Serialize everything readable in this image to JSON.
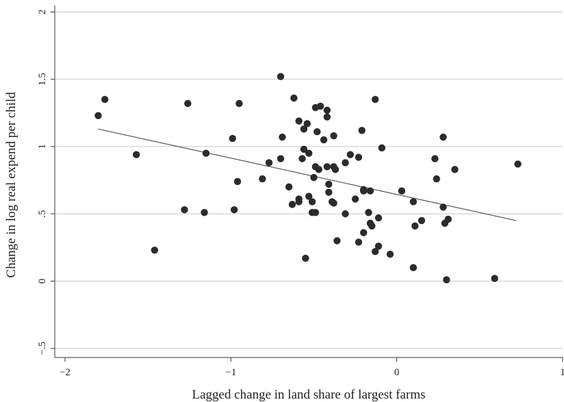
{
  "chart_data": {
    "type": "scatter",
    "title": "",
    "xlabel": "Lagged change in land share of largest farms",
    "ylabel": "Change in log real expend per child",
    "xlim": [
      -2.02,
      1.0
    ],
    "ylim": [
      -0.56,
      2.05
    ],
    "x_ticks": [
      {
        "value": -2,
        "label": "−2"
      },
      {
        "value": -1,
        "label": "−1"
      },
      {
        "value": 0,
        "label": "0"
      },
      {
        "value": 1,
        "label": "1"
      }
    ],
    "y_ticks": [
      {
        "value": -0.5,
        "label": "−.5"
      },
      {
        "value": 0,
        "label": "0"
      },
      {
        "value": 0.5,
        "label": ".5"
      },
      {
        "value": 1,
        "label": "1"
      },
      {
        "value": 1.5,
        "label": "1.5"
      },
      {
        "value": 2,
        "label": "2"
      }
    ],
    "grid": {
      "horizontal": true,
      "vertical": false
    },
    "legend": "none",
    "point_color": "#2b2b2b",
    "line_color": "#555555",
    "grid_color": "#c8c8c8",
    "fit_line": {
      "x": [
        -1.8,
        0.72
      ],
      "y": [
        1.13,
        0.45
      ]
    },
    "points": [
      {
        "x": -1.8,
        "y": 1.23
      },
      {
        "x": -1.76,
        "y": 1.35
      },
      {
        "x": -1.57,
        "y": 0.94
      },
      {
        "x": -1.46,
        "y": 0.23
      },
      {
        "x": -1.26,
        "y": 1.32
      },
      {
        "x": -1.28,
        "y": 0.53
      },
      {
        "x": -1.15,
        "y": 0.95
      },
      {
        "x": -1.16,
        "y": 0.51
      },
      {
        "x": -0.99,
        "y": 1.06
      },
      {
        "x": -0.95,
        "y": 1.32
      },
      {
        "x": -0.96,
        "y": 0.74
      },
      {
        "x": -0.98,
        "y": 0.53
      },
      {
        "x": -0.81,
        "y": 0.76
      },
      {
        "x": -0.77,
        "y": 0.88
      },
      {
        "x": -0.7,
        "y": 1.52
      },
      {
        "x": -0.69,
        "y": 1.07
      },
      {
        "x": -0.7,
        "y": 0.91
      },
      {
        "x": -0.65,
        "y": 0.7
      },
      {
        "x": -0.62,
        "y": 1.36
      },
      {
        "x": -0.63,
        "y": 0.57
      },
      {
        "x": -0.59,
        "y": 1.19
      },
      {
        "x": -0.59,
        "y": 0.61
      },
      {
        "x": -0.59,
        "y": 0.59
      },
      {
        "x": -0.56,
        "y": 1.13
      },
      {
        "x": -0.56,
        "y": 0.98
      },
      {
        "x": -0.57,
        "y": 0.91
      },
      {
        "x": -0.54,
        "y": 1.17
      },
      {
        "x": -0.55,
        "y": 0.17
      },
      {
        "x": -0.53,
        "y": 0.95
      },
      {
        "x": -0.53,
        "y": 0.63
      },
      {
        "x": -0.51,
        "y": 0.59
      },
      {
        "x": -0.51,
        "y": 0.51
      },
      {
        "x": -0.49,
        "y": 1.29
      },
      {
        "x": -0.48,
        "y": 1.11
      },
      {
        "x": -0.49,
        "y": 0.85
      },
      {
        "x": -0.5,
        "y": 0.77
      },
      {
        "x": -0.49,
        "y": 0.51
      },
      {
        "x": -0.46,
        "y": 1.3
      },
      {
        "x": -0.44,
        "y": 1.05
      },
      {
        "x": -0.47,
        "y": 0.83
      },
      {
        "x": -0.42,
        "y": 1.27
      },
      {
        "x": -0.42,
        "y": 1.22
      },
      {
        "x": -0.42,
        "y": 0.85
      },
      {
        "x": -0.41,
        "y": 0.72
      },
      {
        "x": -0.41,
        "y": 0.66
      },
      {
        "x": -0.39,
        "y": 0.59
      },
      {
        "x": -0.38,
        "y": 1.08
      },
      {
        "x": -0.38,
        "y": 0.85
      },
      {
        "x": -0.37,
        "y": 0.83
      },
      {
        "x": -0.38,
        "y": 0.58
      },
      {
        "x": -0.36,
        "y": 0.3
      },
      {
        "x": -0.31,
        "y": 0.88
      },
      {
        "x": -0.31,
        "y": 0.5
      },
      {
        "x": -0.28,
        "y": 0.94
      },
      {
        "x": -0.25,
        "y": 0.61
      },
      {
        "x": -0.23,
        "y": 0.92
      },
      {
        "x": -0.23,
        "y": 0.29
      },
      {
        "x": -0.21,
        "y": 1.12
      },
      {
        "x": -0.2,
        "y": 0.68
      },
      {
        "x": -0.2,
        "y": 0.67
      },
      {
        "x": -0.2,
        "y": 0.36
      },
      {
        "x": -0.17,
        "y": 0.51
      },
      {
        "x": -0.16,
        "y": 0.67
      },
      {
        "x": -0.16,
        "y": 0.43
      },
      {
        "x": -0.15,
        "y": 0.41
      },
      {
        "x": -0.13,
        "y": 1.35
      },
      {
        "x": -0.13,
        "y": 0.22
      },
      {
        "x": -0.11,
        "y": 0.47
      },
      {
        "x": -0.11,
        "y": 0.26
      },
      {
        "x": -0.09,
        "y": 0.99
      },
      {
        "x": -0.04,
        "y": 0.2
      },
      {
        "x": 0.03,
        "y": 0.67
      },
      {
        "x": 0.1,
        "y": 0.59
      },
      {
        "x": 0.1,
        "y": 0.1
      },
      {
        "x": 0.11,
        "y": 0.41
      },
      {
        "x": 0.15,
        "y": 0.45
      },
      {
        "x": 0.23,
        "y": 0.91
      },
      {
        "x": 0.24,
        "y": 0.76
      },
      {
        "x": 0.28,
        "y": 1.07
      },
      {
        "x": 0.28,
        "y": 0.55
      },
      {
        "x": 0.29,
        "y": 0.43
      },
      {
        "x": 0.31,
        "y": 0.46
      },
      {
        "x": 0.3,
        "y": 0.01
      },
      {
        "x": 0.35,
        "y": 0.83
      },
      {
        "x": 0.59,
        "y": 0.02
      },
      {
        "x": 0.73,
        "y": 0.87
      }
    ]
  }
}
